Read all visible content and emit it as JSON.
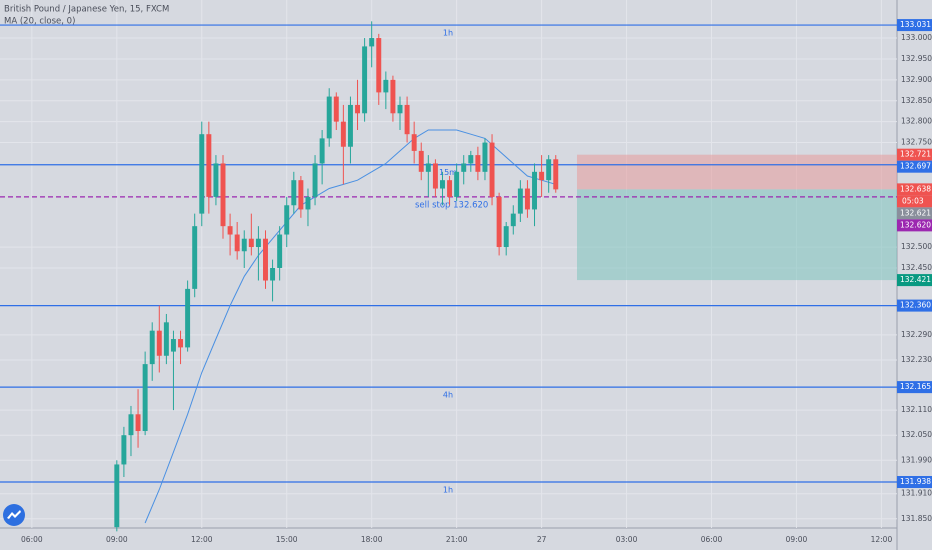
{
  "chart_data": {
    "type": "candlestick",
    "title": "British Pound / Japanese Yen, 15, FXCM",
    "indicator": "MA (20, close, 0)",
    "colors": {
      "up": "#26a69a",
      "down": "#ef5350"
    },
    "x": [
      12,
      13,
      14,
      15,
      16,
      17,
      18,
      19,
      20,
      21,
      22,
      23,
      24,
      25,
      26,
      27,
      28,
      29,
      30,
      31,
      32,
      33,
      34,
      35,
      36,
      37,
      38,
      39,
      40,
      41,
      42,
      43,
      44,
      45,
      46,
      47,
      48,
      49,
      50,
      51,
      52,
      53,
      54,
      55,
      56,
      57,
      58,
      59,
      60,
      61,
      62,
      63,
      64,
      65,
      66,
      67,
      68,
      69,
      70,
      71,
      72,
      73,
      74
    ],
    "open": [
      131.83,
      131.98,
      132.05,
      132.1,
      132.06,
      132.22,
      132.3,
      132.24,
      132.25,
      132.28,
      132.26,
      132.4,
      132.58,
      132.77,
      132.62,
      132.7,
      132.55,
      132.53,
      132.49,
      132.52,
      132.5,
      132.52,
      132.42,
      132.45,
      132.53,
      132.6,
      132.66,
      132.59,
      132.62,
      132.7,
      132.76,
      132.86,
      132.8,
      132.74,
      132.84,
      132.82,
      132.98,
      133.0,
      132.87,
      132.9,
      132.82,
      132.84,
      132.77,
      132.73,
      132.68,
      132.7,
      132.64,
      132.66,
      132.62,
      132.68,
      132.7,
      132.72,
      132.68,
      132.75,
      132.62,
      132.5,
      132.55,
      132.58,
      132.64,
      132.59,
      132.68,
      132.66,
      132.71
    ],
    "high": [
      131.99,
      132.07,
      132.12,
      132.16,
      132.25,
      132.32,
      132.36,
      132.34,
      132.3,
      132.3,
      132.42,
      132.58,
      132.8,
      132.8,
      132.72,
      132.72,
      132.58,
      132.56,
      132.54,
      132.58,
      132.55,
      132.54,
      132.47,
      132.55,
      132.62,
      132.68,
      132.67,
      132.64,
      132.72,
      132.78,
      132.88,
      132.87,
      132.84,
      132.86,
      132.9,
      133.0,
      133.04,
      133.01,
      132.92,
      132.91,
      132.86,
      132.86,
      132.8,
      132.75,
      132.72,
      132.71,
      132.68,
      132.67,
      132.7,
      132.72,
      132.73,
      132.74,
      132.76,
      132.77,
      132.63,
      132.56,
      132.6,
      132.66,
      132.66,
      132.7,
      132.72,
      132.72,
      132.72
    ],
    "low": [
      131.82,
      131.95,
      132.0,
      132.02,
      132.05,
      132.18,
      132.2,
      132.22,
      132.11,
      132.22,
      132.25,
      132.38,
      132.55,
      132.58,
      132.6,
      132.52,
      132.48,
      132.47,
      132.45,
      132.48,
      132.42,
      132.4,
      132.37,
      132.42,
      132.5,
      132.58,
      132.57,
      132.55,
      132.6,
      132.65,
      132.74,
      132.78,
      132.65,
      132.7,
      132.78,
      132.8,
      132.93,
      132.84,
      132.83,
      132.8,
      132.78,
      132.75,
      132.7,
      132.66,
      132.62,
      132.62,
      132.6,
      132.6,
      132.61,
      132.65,
      132.68,
      132.66,
      132.66,
      132.6,
      132.48,
      132.48,
      132.53,
      132.56,
      132.57,
      132.55,
      132.62,
      132.63,
      132.63
    ],
    "close": [
      131.98,
      132.05,
      132.1,
      132.06,
      132.22,
      132.3,
      132.24,
      132.32,
      132.28,
      132.26,
      132.4,
      132.55,
      132.77,
      132.62,
      132.7,
      132.55,
      132.53,
      132.49,
      132.52,
      132.5,
      132.52,
      132.42,
      132.45,
      132.53,
      132.6,
      132.66,
      132.59,
      132.62,
      132.7,
      132.76,
      132.86,
      132.8,
      132.74,
      132.84,
      132.82,
      132.98,
      133.0,
      132.87,
      132.9,
      132.82,
      132.84,
      132.77,
      132.73,
      132.68,
      132.7,
      132.64,
      132.66,
      132.62,
      132.68,
      132.7,
      132.72,
      132.68,
      132.75,
      132.62,
      132.5,
      132.55,
      132.58,
      132.64,
      132.59,
      132.68,
      132.66,
      132.71,
      132.638
    ],
    "ma": {
      "color": "#4a90e2",
      "x": [
        16,
        18,
        20,
        22,
        24,
        26,
        28,
        30,
        32,
        34,
        36,
        38,
        40,
        42,
        44,
        46,
        48,
        50,
        52,
        54,
        56,
        58,
        60,
        62,
        64,
        66,
        68,
        70,
        72,
        74
      ],
      "values": [
        131.84,
        131.92,
        132.01,
        132.1,
        132.2,
        132.28,
        132.36,
        132.43,
        132.48,
        132.52,
        132.56,
        132.6,
        132.62,
        132.64,
        132.65,
        132.66,
        132.68,
        132.7,
        132.73,
        132.76,
        132.78,
        132.78,
        132.78,
        132.77,
        132.76,
        132.73,
        132.7,
        132.67,
        132.66,
        132.65
      ]
    },
    "xlim": [
      -4.5,
      122.2
    ],
    "xticks": [
      {
        "value": 0,
        "label": "06:00"
      },
      {
        "value": 12,
        "label": "09:00"
      },
      {
        "value": 24,
        "label": "12:00"
      },
      {
        "value": 36,
        "label": "15:00"
      },
      {
        "value": 48,
        "label": "18:00"
      },
      {
        "value": 60,
        "label": "21:00"
      },
      {
        "value": 72,
        "label": "27"
      },
      {
        "value": 84,
        "label": "03:00"
      },
      {
        "value": 96,
        "label": "06:00"
      },
      {
        "value": 108,
        "label": "09:00"
      },
      {
        "value": 120,
        "label": "12:00"
      }
    ],
    "ylim": [
      131.828,
      133.091
    ],
    "yticks": [
      {
        "value": 133.0,
        "label": "133.000"
      },
      {
        "value": 132.95,
        "label": "132.950"
      },
      {
        "value": 132.9,
        "label": "132.900"
      },
      {
        "value": 132.85,
        "label": "132.850"
      },
      {
        "value": 132.8,
        "label": "132.800"
      },
      {
        "value": 132.75,
        "label": "132.750"
      },
      {
        "value": 132.5,
        "label": "132.500"
      },
      {
        "value": 132.45,
        "label": "132.450"
      },
      {
        "value": 132.29,
        "label": "132.290"
      },
      {
        "value": 132.23,
        "label": "132.230"
      },
      {
        "value": 132.11,
        "label": "132.110"
      },
      {
        "value": 132.05,
        "label": "132.050"
      },
      {
        "value": 131.99,
        "label": "131.990"
      },
      {
        "value": 131.91,
        "label": "131.910"
      },
      {
        "value": 131.85,
        "label": "131.850"
      }
    ],
    "grid": true,
    "levels": {
      "color": "#2f6fe6",
      "items": [
        {
          "value": 133.031,
          "label": "133.031",
          "note": "1h"
        },
        {
          "value": 132.697,
          "label": "132.697",
          "note": "15m"
        },
        {
          "value": 132.36,
          "label": "132.360"
        },
        {
          "value": 132.165,
          "label": "132.165",
          "note": "4h"
        },
        {
          "value": 131.938,
          "label": "131.938",
          "note": "1h"
        }
      ]
    },
    "order": {
      "value": 132.62,
      "label": "132.620",
      "text": "sell stop 132.620",
      "color": "#9c27b0"
    },
    "position": {
      "x": 77,
      "stop": {
        "value": 132.721,
        "label": "132.721"
      },
      "entry": 132.638,
      "target": {
        "value": 132.421,
        "label": "132.421"
      },
      "stop_color": "#e89a9a",
      "target_color": "#7fc4bd"
    },
    "last_price": {
      "value": 132.638,
      "label": "132.638",
      "timer": "05:03"
    },
    "bid": {
      "value": 132.621,
      "label": "132.621"
    }
  }
}
